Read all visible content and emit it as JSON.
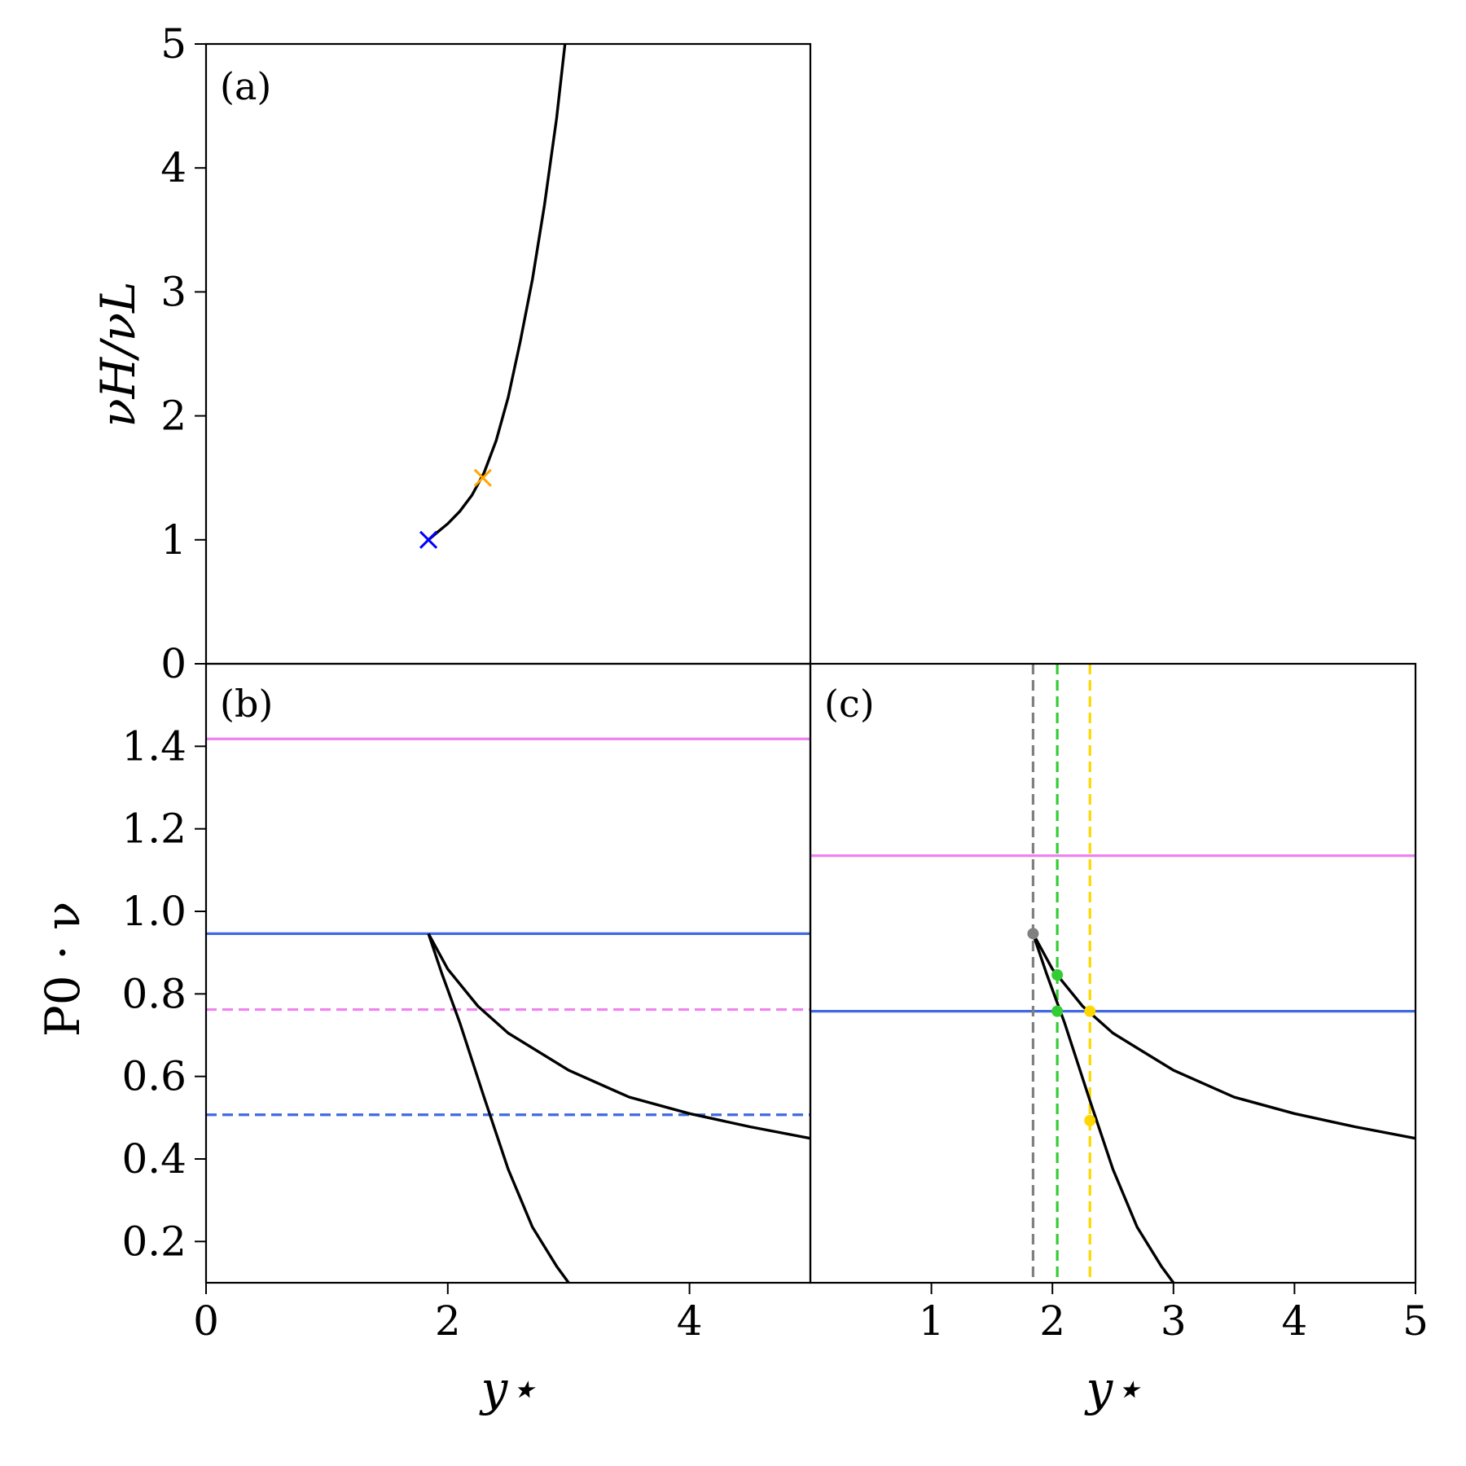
{
  "chart_data": [
    {
      "id": "a",
      "type": "line",
      "panel_label": "(a)",
      "ylabel": "νH/νL",
      "xlim": [
        0,
        5
      ],
      "ylim": [
        0,
        5
      ],
      "yticks": [
        0,
        1,
        2,
        3,
        4,
        5
      ],
      "ytick_labels": [
        "0",
        "1",
        "2",
        "3",
        "4",
        "5"
      ],
      "series": [
        {
          "color": "#000000",
          "x": [
            1.84,
            1.9,
            2.0,
            2.1,
            2.2,
            2.3,
            2.4,
            2.5,
            2.6,
            2.7,
            2.8,
            2.9,
            2.97
          ],
          "y": [
            1.0,
            1.05,
            1.13,
            1.23,
            1.36,
            1.54,
            1.8,
            2.15,
            2.6,
            3.1,
            3.7,
            4.4,
            5.0
          ]
        }
      ],
      "markers": [
        {
          "x": 1.84,
          "y": 1.0,
          "color": "#0000ff",
          "symbol": "x"
        },
        {
          "x": 2.29,
          "y": 1.5,
          "color": "#ffa500",
          "symbol": "x"
        }
      ]
    },
    {
      "id": "b",
      "type": "line",
      "panel_label": "(b)",
      "xlabel": "y⋆",
      "ylabel": "P0 · ν",
      "xlim": [
        0,
        5
      ],
      "ylim": [
        0.1,
        1.6
      ],
      "xticks": [
        0,
        2,
        4
      ],
      "xtick_labels": [
        "0",
        "2",
        "4"
      ],
      "yticks": [
        0.2,
        0.4,
        0.6,
        0.8,
        1.0,
        1.2,
        1.4
      ],
      "ytick_labels": [
        "0.2",
        "0.4",
        "0.6",
        "0.8",
        "1.0",
        "1.2",
        "1.4"
      ],
      "hlines": [
        {
          "y": 1.418,
          "color": "#ee82ee",
          "style": "solid"
        },
        {
          "y": 0.946,
          "color": "#4169e1",
          "style": "solid"
        },
        {
          "y": 0.762,
          "color": "#ee82ee",
          "style": "dashed"
        },
        {
          "y": 0.507,
          "color": "#4169e1",
          "style": "dashed"
        }
      ],
      "series": [
        {
          "color": "#000000",
          "x": [
            1.84,
            2.0,
            2.25,
            2.5,
            3.0,
            3.5,
            4.0,
            4.5,
            5.0
          ],
          "y": [
            0.946,
            0.86,
            0.77,
            0.705,
            0.615,
            0.55,
            0.51,
            0.478,
            0.45
          ]
        },
        {
          "color": "#000000",
          "x": [
            1.84,
            1.95,
            2.1,
            2.3,
            2.5,
            2.7,
            2.9,
            3.0
          ],
          "y": [
            0.946,
            0.85,
            0.73,
            0.55,
            0.375,
            0.235,
            0.14,
            0.1
          ]
        }
      ]
    },
    {
      "id": "c",
      "type": "line",
      "panel_label": "(c)",
      "xlabel": "y⋆",
      "xlim": [
        0,
        5
      ],
      "ylim": [
        0.1,
        1.6
      ],
      "xticks": [
        1,
        2,
        3,
        4,
        5
      ],
      "xtick_labels": [
        "1",
        "2",
        "3",
        "4",
        "5"
      ],
      "hlines": [
        {
          "y": 1.135,
          "color": "#ee82ee",
          "style": "solid"
        },
        {
          "y": 0.758,
          "color": "#4169e1",
          "style": "solid"
        }
      ],
      "vlines": [
        {
          "x": 1.84,
          "color": "#808080",
          "style": "dashed"
        },
        {
          "x": 2.04,
          "color": "#32cd32",
          "style": "dashed"
        },
        {
          "x": 2.31,
          "color": "#ffd700",
          "style": "dashed"
        }
      ],
      "series": [
        {
          "color": "#000000",
          "x": [
            1.84,
            2.0,
            2.25,
            2.5,
            3.0,
            3.5,
            4.0,
            4.5,
            5.0
          ],
          "y": [
            0.946,
            0.86,
            0.77,
            0.705,
            0.615,
            0.55,
            0.51,
            0.478,
            0.45
          ]
        },
        {
          "color": "#000000",
          "x": [
            1.84,
            1.95,
            2.1,
            2.3,
            2.5,
            2.7,
            2.9,
            3.0
          ],
          "y": [
            0.946,
            0.85,
            0.73,
            0.55,
            0.375,
            0.235,
            0.14,
            0.1
          ]
        }
      ],
      "points": [
        {
          "x": 1.84,
          "y": 0.946,
          "color": "#808080"
        },
        {
          "x": 2.04,
          "y": 0.846,
          "color": "#32cd32"
        },
        {
          "x": 2.04,
          "y": 0.758,
          "color": "#32cd32"
        },
        {
          "x": 2.31,
          "y": 0.758,
          "color": "#ffd700"
        },
        {
          "x": 2.31,
          "y": 0.493,
          "color": "#ffd700"
        }
      ]
    }
  ]
}
